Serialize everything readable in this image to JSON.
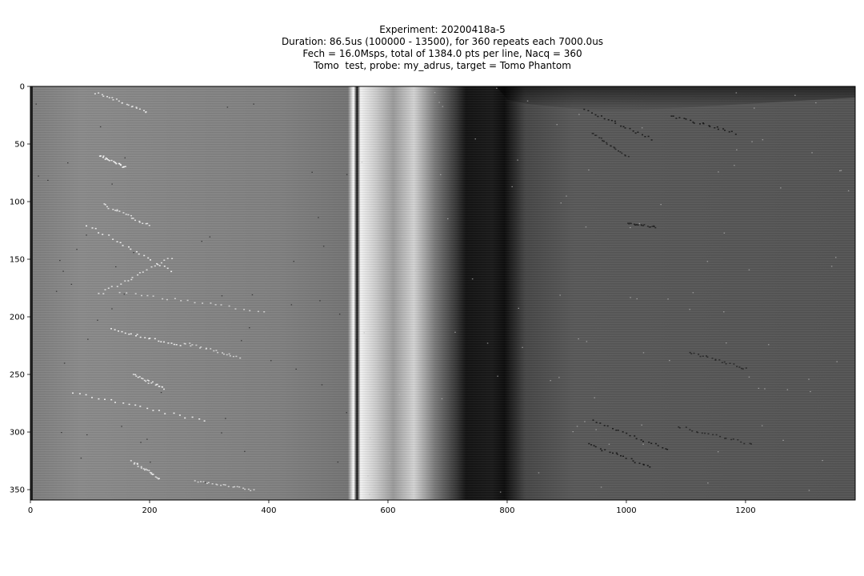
{
  "chart_data": {
    "type": "heatmap",
    "title_lines": [
      "Experiment: 20200418a-5",
      "Duration: 86.5us (100000 - 13500), for 360 repeats each 7000.0us",
      "Fech = 16.0Msps, total of 1384.0 pts per line, Nacq = 360",
      "Tomo  test, probe: my_adrus, target = Tomo Phantom"
    ],
    "xlabel": "",
    "ylabel": "",
    "xlim": [
      0,
      1384
    ],
    "ylim": [
      359,
      0
    ],
    "x_ticks": [
      0,
      200,
      400,
      600,
      800,
      1000,
      1200
    ],
    "y_ticks": [
      0,
      50,
      100,
      150,
      200,
      250,
      300,
      350
    ],
    "colormap": "gray",
    "colorbar": false,
    "grid": false,
    "features": {
      "bright_line_x": 547,
      "dark_band_x": [
        730,
        800
      ],
      "background_left_level": 0.52,
      "background_right_level": 0.33
    }
  }
}
